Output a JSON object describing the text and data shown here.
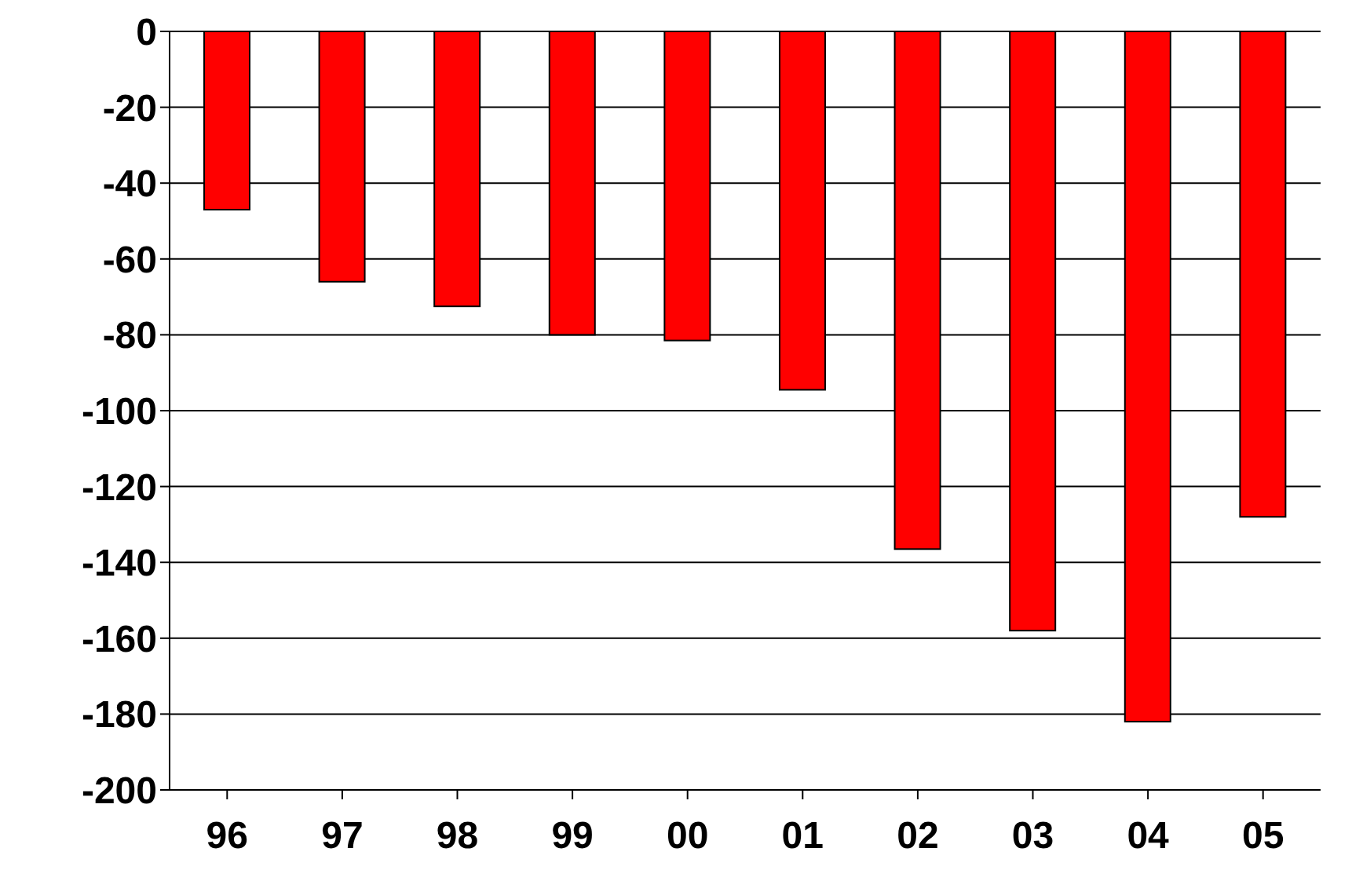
{
  "chart_data": {
    "type": "bar",
    "categories": [
      "96",
      "97",
      "98",
      "99",
      "00",
      "01",
      "02",
      "03",
      "04",
      "05"
    ],
    "values": [
      -47,
      -66,
      -72.5,
      -80,
      -81.5,
      -94.5,
      -136.5,
      -158,
      -182,
      -128
    ],
    "color": "#ff0000",
    "ylim": [
      -200,
      0
    ],
    "yticks": [
      -200,
      -180,
      -160,
      -140,
      -120,
      -100,
      -80,
      -60,
      -40,
      -20,
      0
    ],
    "grid": "y",
    "legend": false
  }
}
